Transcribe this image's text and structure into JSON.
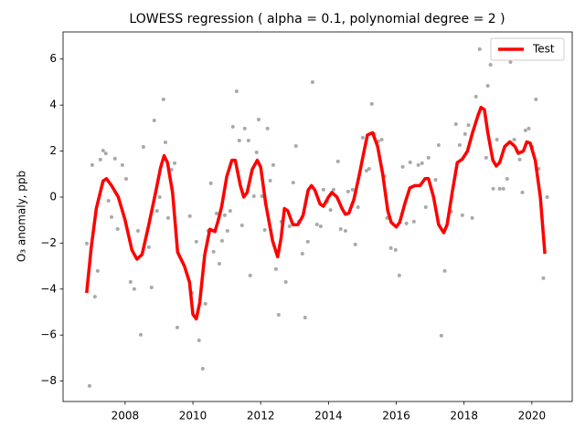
{
  "chart_data": {
    "type": "line",
    "title": "LOWESS regression ( alpha = 0.1, polynomial degree = 2 )",
    "ylabel": "O₃ anomaly, ppb",
    "xlim": [
      2006.17,
      2021.19
    ],
    "ylim": [
      -8.89,
      7.18
    ],
    "xticks": [
      2008,
      2010,
      2012,
      2014,
      2016,
      2018,
      2020
    ],
    "yticks": [
      {
        "value": -8,
        "label": "−8"
      },
      {
        "value": -6,
        "label": "−6"
      },
      {
        "value": -4,
        "label": "−4"
      },
      {
        "value": -2,
        "label": "−2"
      },
      0,
      2,
      4,
      6
    ],
    "legend": "upper right",
    "points": {
      "color": "#a9a9a9",
      "x": [
        2006.87,
        2006.95,
        2007.03,
        2007.11,
        2007.19,
        2007.27,
        2007.35,
        2007.43,
        2007.51,
        2007.6,
        2007.7,
        2007.78,
        2007.92,
        2008.03,
        2008.16,
        2008.27,
        2008.38,
        2008.46,
        2008.54,
        2008.7,
        2008.78,
        2008.86,
        2008.94,
        2009.02,
        2009.13,
        2009.19,
        2009.27,
        2009.37,
        2009.46,
        2009.54,
        2009.91,
        2009.97,
        2010.1,
        2010.18,
        2010.29,
        2010.37,
        2010.45,
        2010.53,
        2010.61,
        2010.7,
        2010.78,
        2010.86,
        2010.94,
        2011.02,
        2011.1,
        2011.18,
        2011.29,
        2011.37,
        2011.45,
        2011.53,
        2011.64,
        2011.69,
        2011.8,
        2011.88,
        2011.94,
        2012.04,
        2012.12,
        2012.2,
        2012.28,
        2012.37,
        2012.45,
        2012.53,
        2012.61,
        2012.74,
        2012.85,
        2012.96,
        2013.04,
        2013.12,
        2013.23,
        2013.31,
        2013.39,
        2013.53,
        2013.66,
        2013.77,
        2013.85,
        2013.96,
        2014.06,
        2014.15,
        2014.28,
        2014.36,
        2014.5,
        2014.58,
        2014.71,
        2014.79,
        2014.87,
        2015.01,
        2015.12,
        2015.2,
        2015.28,
        2015.36,
        2015.47,
        2015.57,
        2015.65,
        2015.73,
        2015.84,
        2015.98,
        2016.09,
        2016.19,
        2016.3,
        2016.41,
        2016.52,
        2016.65,
        2016.76,
        2016.87,
        2016.95,
        2017.16,
        2017.25,
        2017.33,
        2017.43,
        2017.62,
        2017.76,
        2017.87,
        2017.95,
        2018.03,
        2018.13,
        2018.24,
        2018.35,
        2018.46,
        2018.65,
        2018.7,
        2018.78,
        2018.86,
        2018.97,
        2019.05,
        2019.16,
        2019.27,
        2019.37,
        2019.48,
        2019.56,
        2019.64,
        2019.72,
        2019.81,
        2019.91,
        2020.01,
        2020.12,
        2020.2,
        2020.34,
        2020.45
      ],
      "y": [
        -2.02,
        -8.21,
        1.39,
        -4.33,
        -3.21,
        1.63,
        2.02,
        1.9,
        -0.16,
        -0.87,
        1.67,
        -1.39,
        1.39,
        0.79,
        -3.69,
        -4.0,
        -1.47,
        -5.99,
        2.18,
        -2.18,
        -3.93,
        3.33,
        -0.6,
        0,
        4.25,
        2.38,
        -0.91,
        1.19,
        1.47,
        -5.67,
        -0.83,
        -4.17,
        -1.94,
        -6.23,
        -7.46,
        -4.64,
        -1.47,
        0.6,
        -2.38,
        -0.71,
        -2.9,
        -1.9,
        -0.79,
        -1.47,
        -0.6,
        3.06,
        4.6,
        2.46,
        -1.23,
        2.98,
        2.46,
        -3.41,
        0.04,
        1.94,
        3.37,
        0.04,
        -1.43,
        2.98,
        0.71,
        1.39,
        -3.13,
        -5.12,
        -1.07,
        -3.69,
        -1.27,
        0.63,
        2.22,
        -1.07,
        -2.46,
        -5.24,
        -1.94,
        5.0,
        -1.19,
        -1.27,
        0.32,
        -0.2,
        -0.56,
        0.32,
        1.55,
        -1.39,
        -1.47,
        0.24,
        0.32,
        -2.06,
        -0.44,
        2.58,
        1.15,
        1.23,
        4.05,
        2.74,
        2.42,
        2.5,
        0.91,
        -0.91,
        -2.22,
        -2.3,
        -3.41,
        1.31,
        -1.15,
        1.51,
        -1.07,
        1.39,
        1.47,
        -0.44,
        1.71,
        0.75,
        2.26,
        -6.03,
        -3.21,
        -0.63,
        3.17,
        2.26,
        -0.79,
        2.74,
        3.13,
        -0.91,
        4.37,
        6.43,
        1.71,
        4.84,
        5.75,
        0.36,
        2.5,
        0.36,
        0.36,
        0.79,
        5.87,
        2.5,
        2.02,
        1.63,
        0.2,
        2.9,
        2.98,
        2.18,
        4.25,
        1.23,
        -3.53,
        0
      ]
    },
    "series": [
      {
        "name": "Test",
        "color": "#ff0000",
        "x": [
          2006.87,
          2007.0,
          2007.15,
          2007.35,
          2007.45,
          2007.6,
          2007.8,
          2008.0,
          2008.2,
          2008.35,
          2008.5,
          2008.7,
          2008.9,
          2009.05,
          2009.15,
          2009.25,
          2009.4,
          2009.55,
          2009.75,
          2009.9,
          2010.0,
          2010.1,
          2010.2,
          2010.35,
          2010.5,
          2010.65,
          2010.75,
          2010.85,
          2011.0,
          2011.15,
          2011.25,
          2011.4,
          2011.5,
          2011.6,
          2011.75,
          2011.9,
          2012.0,
          2012.15,
          2012.35,
          2012.5,
          2012.6,
          2012.7,
          2012.8,
          2012.95,
          2013.1,
          2013.25,
          2013.4,
          2013.5,
          2013.6,
          2013.75,
          2013.85,
          2014.0,
          2014.1,
          2014.25,
          2014.4,
          2014.5,
          2014.6,
          2014.75,
          2014.9,
          2015.05,
          2015.15,
          2015.3,
          2015.45,
          2015.6,
          2015.75,
          2015.85,
          2016.0,
          2016.1,
          2016.25,
          2016.4,
          2016.55,
          2016.7,
          2016.85,
          2016.95,
          2017.1,
          2017.25,
          2017.4,
          2017.5,
          2017.65,
          2017.8,
          2017.95,
          2018.1,
          2018.25,
          2018.4,
          2018.5,
          2018.6,
          2018.7,
          2018.85,
          2018.95,
          2019.05,
          2019.2,
          2019.35,
          2019.5,
          2019.6,
          2019.75,
          2019.85,
          2019.95,
          2020.1,
          2020.25,
          2020.38
        ],
        "values": [
          -4.1,
          -2.2,
          -0.5,
          0.7,
          0.8,
          0.5,
          0.0,
          -1.0,
          -2.3,
          -2.7,
          -2.5,
          -1.2,
          0.2,
          1.3,
          1.8,
          1.5,
          0.2,
          -2.4,
          -3.0,
          -3.7,
          -5.1,
          -5.3,
          -4.6,
          -2.5,
          -1.4,
          -1.5,
          -1.0,
          -0.4,
          0.9,
          1.6,
          1.6,
          0.5,
          0.0,
          0.2,
          1.2,
          1.6,
          1.3,
          -0.3,
          -1.9,
          -2.6,
          -1.8,
          -0.5,
          -0.6,
          -1.2,
          -1.2,
          -0.8,
          0.3,
          0.5,
          0.3,
          -0.3,
          -0.4,
          0.0,
          0.2,
          0.0,
          -0.5,
          -0.75,
          -0.7,
          -0.1,
          0.9,
          2.0,
          2.7,
          2.8,
          2.2,
          1.0,
          -0.6,
          -1.1,
          -1.3,
          -1.1,
          -0.3,
          0.4,
          0.5,
          0.5,
          0.8,
          0.8,
          0.0,
          -1.2,
          -1.55,
          -1.2,
          0.2,
          1.5,
          1.65,
          2.0,
          2.8,
          3.5,
          3.9,
          3.8,
          2.8,
          1.6,
          1.35,
          1.5,
          2.2,
          2.4,
          2.2,
          1.9,
          2.0,
          2.4,
          2.35,
          1.6,
          0.0,
          -2.4
        ]
      }
    ]
  }
}
